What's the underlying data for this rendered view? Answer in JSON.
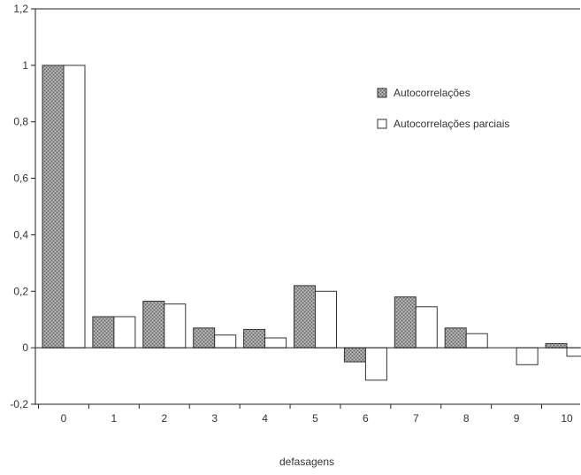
{
  "chart_data": {
    "type": "bar",
    "title": "",
    "xlabel": "defasagens",
    "ylabel": "",
    "categories": [
      "0",
      "1",
      "2",
      "3",
      "4",
      "5",
      "6",
      "7",
      "8",
      "9",
      "10"
    ],
    "series": [
      {
        "name": "Autocorrelações",
        "values": [
          1.0,
          0.11,
          0.165,
          0.07,
          0.065,
          0.22,
          -0.05,
          0.18,
          0.07,
          0.0,
          0.015
        ],
        "color": "#8c8c8c",
        "pattern": "stippled"
      },
      {
        "name": "Autocorrelações parciais",
        "values": [
          1.0,
          0.11,
          0.155,
          0.045,
          0.035,
          0.2,
          -0.115,
          0.145,
          0.05,
          -0.06,
          -0.03
        ],
        "color": "#ffffff"
      }
    ],
    "ylim": [
      -0.2,
      1.2
    ],
    "yticks": [
      "-0,2",
      "0",
      "0,2",
      "0,4",
      "0,6",
      "0,8",
      "1",
      "1,2"
    ],
    "ytick_values": [
      -0.2,
      0,
      0.2,
      0.4,
      0.6,
      0.8,
      1.0,
      1.2
    ],
    "grid": false,
    "legend_position": "top-right"
  }
}
